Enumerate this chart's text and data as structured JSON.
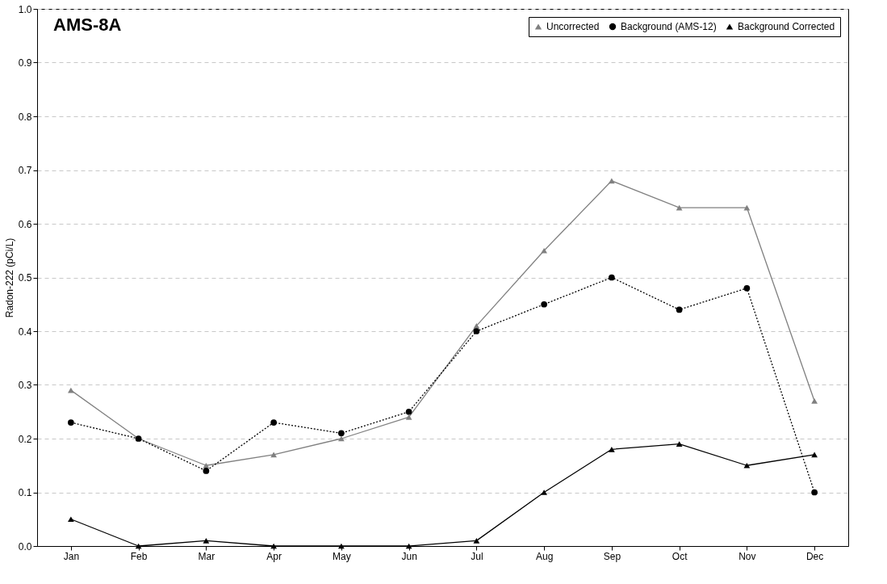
{
  "chart_data": {
    "type": "line",
    "title": "AMS-8A",
    "ylabel": "Radon-222 (pCi/L)",
    "categories": [
      "Jan",
      "Feb",
      "Mar",
      "Apr",
      "May",
      "Jun",
      "Jul",
      "Aug",
      "Sep",
      "Oct",
      "Nov",
      "Dec"
    ],
    "series": [
      {
        "name": "Uncorrected",
        "color": "#808080",
        "marker": "triangle",
        "line_style": "solid",
        "values": [
          0.29,
          0.2,
          0.15,
          0.17,
          0.2,
          0.24,
          0.41,
          0.55,
          0.68,
          0.63,
          0.63,
          0.27
        ]
      },
      {
        "name": "Background (AMS-12)",
        "color": "#000000",
        "marker": "circle",
        "line_style": "dotted",
        "values": [
          0.23,
          0.2,
          0.14,
          0.23,
          0.21,
          0.25,
          0.4,
          0.45,
          0.5,
          0.44,
          0.48,
          0.1
        ]
      },
      {
        "name": "Background Corrected",
        "color": "#000000",
        "marker": "triangle",
        "line_style": "solid",
        "values": [
          0.05,
          0.0,
          0.01,
          0.0,
          0.0,
          0.0,
          0.01,
          0.1,
          0.18,
          0.19,
          0.15,
          0.17
        ]
      }
    ],
    "ylim": [
      0,
      1
    ],
    "yticks": [
      {
        "value": 0,
        "label": "0.0"
      },
      0.1,
      0.2,
      0.3,
      0.4,
      0.5,
      0.6,
      0.7,
      0.8,
      0.9,
      {
        "value": 1,
        "label": "1.0"
      }
    ],
    "grid": "y",
    "legend": "top right"
  }
}
